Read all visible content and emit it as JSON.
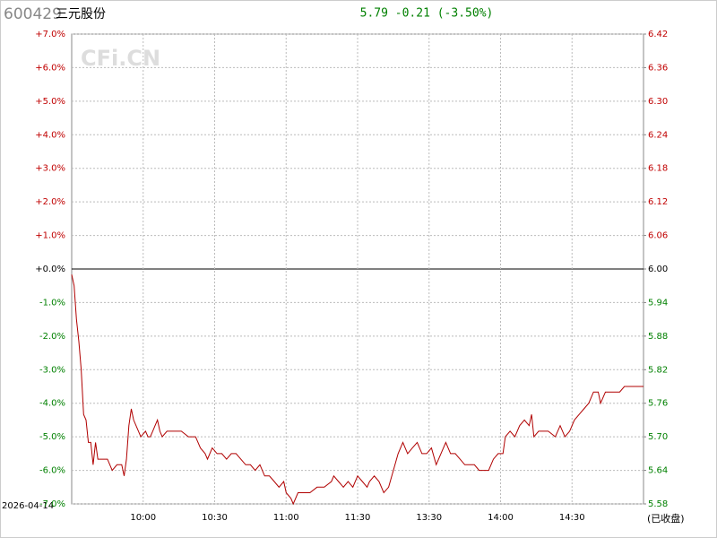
{
  "chart_data": {
    "type": "line",
    "title": "600429",
    "subtitle": "三元股份",
    "quote": "5.79 -0.21 (-3.50%)",
    "watermark": "CFi.CN",
    "date": "2026-04-14",
    "status": "(已收盘)",
    "x": [
      0,
      1,
      2,
      3,
      4,
      5,
      6,
      7,
      8,
      9,
      10,
      11,
      13,
      15,
      17,
      19,
      21,
      22,
      23,
      24,
      25,
      26,
      27,
      29,
      31,
      32,
      33,
      34,
      35,
      36,
      37,
      38,
      40,
      43,
      46,
      49,
      52,
      54,
      56,
      57,
      59,
      61,
      63,
      65,
      67,
      69,
      71,
      73,
      75,
      77,
      79,
      81,
      83,
      85,
      87,
      89,
      90,
      92,
      93,
      95,
      97,
      100,
      103,
      106,
      109,
      110,
      112,
      114,
      116,
      118,
      120,
      122,
      124,
      125,
      127,
      129,
      131,
      133,
      135,
      137,
      139,
      141,
      143,
      145,
      147,
      149,
      151,
      153,
      155,
      157,
      159,
      161,
      163,
      165,
      167,
      169,
      171,
      173,
      175,
      177,
      179,
      181,
      182,
      184,
      186,
      188,
      190,
      192,
      193,
      194,
      196,
      198,
      200,
      203,
      205,
      207,
      209,
      211,
      213,
      215,
      217,
      219,
      221,
      222,
      224,
      226,
      228,
      230,
      232,
      234,
      237,
      240
    ],
    "series": [
      {
        "color": "#b00000",
        "values": [
          5.99,
          5.97,
          5.91,
          5.87,
          5.82,
          5.74,
          5.73,
          5.69,
          5.69,
          5.65,
          5.69,
          5.66,
          5.66,
          5.66,
          5.64,
          5.65,
          5.65,
          5.63,
          5.66,
          5.72,
          5.75,
          5.73,
          5.72,
          5.7,
          5.71,
          5.7,
          5.7,
          5.71,
          5.72,
          5.73,
          5.71,
          5.7,
          5.71,
          5.71,
          5.71,
          5.7,
          5.7,
          5.68,
          5.67,
          5.66,
          5.68,
          5.67,
          5.67,
          5.66,
          5.67,
          5.67,
          5.66,
          5.65,
          5.65,
          5.64,
          5.65,
          5.63,
          5.63,
          5.62,
          5.61,
          5.62,
          5.6,
          5.59,
          5.58,
          5.6,
          5.6,
          5.6,
          5.61,
          5.61,
          5.62,
          5.63,
          5.62,
          5.61,
          5.62,
          5.61,
          5.63,
          5.62,
          5.61,
          5.62,
          5.63,
          5.62,
          5.6,
          5.61,
          5.64,
          5.67,
          5.69,
          5.67,
          5.68,
          5.69,
          5.67,
          5.67,
          5.68,
          5.65,
          5.67,
          5.69,
          5.67,
          5.67,
          5.66,
          5.65,
          5.65,
          5.65,
          5.64,
          5.64,
          5.64,
          5.66,
          5.67,
          5.67,
          5.7,
          5.71,
          5.7,
          5.72,
          5.73,
          5.72,
          5.74,
          5.7,
          5.71,
          5.71,
          5.71,
          5.7,
          5.72,
          5.7,
          5.71,
          5.73,
          5.74,
          5.75,
          5.76,
          5.78,
          5.78,
          5.76,
          5.78,
          5.78,
          5.78,
          5.78,
          5.79,
          5.79,
          5.79,
          5.79
        ]
      }
    ],
    "xlim": [
      0,
      240
    ],
    "xticks": [
      {
        "value": 30,
        "label": "10:00"
      },
      {
        "value": 60,
        "label": "10:30"
      },
      {
        "value": 90,
        "label": "11:00"
      },
      {
        "value": 120,
        "label": "11:30"
      },
      {
        "value": 150,
        "label": "13:30"
      },
      {
        "value": 180,
        "label": "14:00"
      },
      {
        "value": 210,
        "label": "14:30"
      }
    ],
    "ylim": [
      5.58,
      6.42
    ],
    "yticks": [
      {
        "value": 6.42,
        "label": "+7.0%"
      },
      {
        "value": 6.36,
        "label": "+6.0%"
      },
      {
        "value": 6.3,
        "label": "+5.0%"
      },
      {
        "value": 6.24,
        "label": "+4.0%"
      },
      {
        "value": 6.18,
        "label": "+3.0%"
      },
      {
        "value": 6.12,
        "label": "+2.0%"
      },
      {
        "value": 6.06,
        "label": "+1.0%"
      },
      {
        "value": 6,
        "label": "+0.0%"
      },
      {
        "value": 5.94,
        "label": "-1.0%"
      },
      {
        "value": 5.88,
        "label": "-2.0%"
      },
      {
        "value": 5.82,
        "label": "-3.0%"
      },
      {
        "value": 5.76,
        "label": "-4.0%"
      },
      {
        "value": 5.7,
        "label": "-5.0%"
      },
      {
        "value": 5.64,
        "label": "-6.0%"
      },
      {
        "value": 5.58,
        "label": "-7.0%"
      }
    ],
    "y2lim": [
      5.58,
      6.42
    ],
    "y2ticks": [
      6.42,
      6.36,
      {
        "value": 6.3,
        "label": "6.30"
      },
      6.24,
      6.18,
      6.12,
      6.06,
      {
        "value": 6,
        "label": "6.00"
      },
      5.94,
      5.88,
      5.82,
      5.76,
      {
        "value": 5.7,
        "label": "5.70"
      },
      5.64,
      5.58
    ],
    "grid": true
  }
}
